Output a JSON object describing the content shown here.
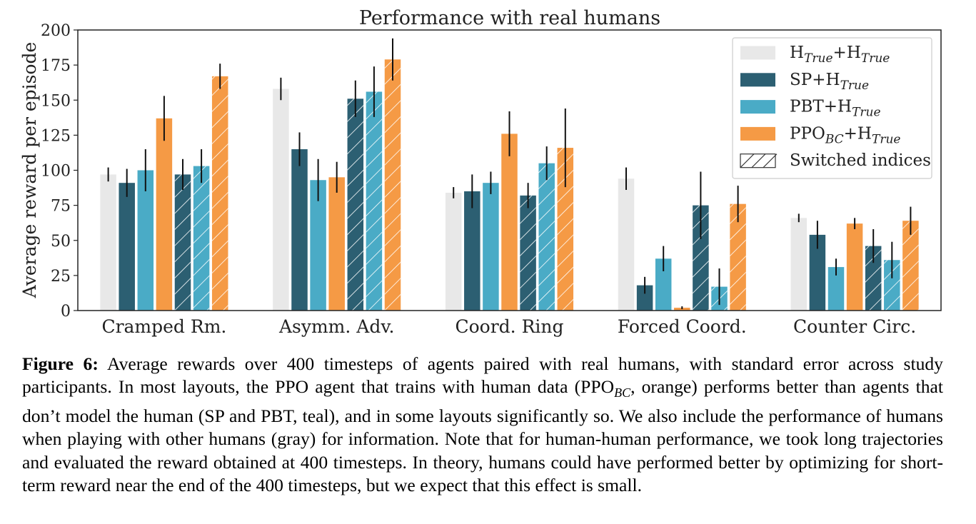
{
  "chart_data": {
    "type": "bar",
    "title": "Performance with real humans",
    "ylabel": "Average reward per episode",
    "xlabel": "",
    "ylim": [
      0,
      200
    ],
    "yticks": [
      0,
      25,
      50,
      75,
      100,
      125,
      150,
      175,
      200
    ],
    "categories": [
      "Cramped Rm.",
      "Asymm. Adv.",
      "Coord. Ring",
      "Forced Coord.",
      "Counter Circ."
    ],
    "legend_position": "top-right",
    "colors": {
      "H_True+H_True": "#e8e8e8",
      "SP+H_True": "#2c5f72",
      "PBT+H_True": "#4aabc6",
      "PPO_BC+H_True": "#f59a45"
    },
    "legend": [
      {
        "base": "H",
        "sub": "True",
        "mid": "+H",
        "sub2": "True",
        "key": "H_True+H_True",
        "hatched": false
      },
      {
        "base": "SP+H",
        "sub": "True",
        "key": "SP+H_True",
        "hatched": false
      },
      {
        "base": "PBT+H",
        "sub": "True",
        "key": "PBT+H_True",
        "hatched": false
      },
      {
        "base": "PPO",
        "sub": "BC",
        "mid": "+H",
        "sub2": "True",
        "key": "PPO_BC+H_True",
        "hatched": false
      },
      {
        "base": "Switched indices",
        "key": "switched",
        "hatched": true
      }
    ],
    "series": [
      {
        "key": "H_True+H_True",
        "values": [
          97,
          158,
          84,
          94,
          66
        ],
        "err": [
          5,
          8,
          4,
          8,
          3
        ]
      },
      {
        "key": "SP+H_True",
        "values": [
          91,
          115,
          85,
          18,
          54
        ],
        "err": [
          10,
          12,
          12,
          6,
          10
        ]
      },
      {
        "key": "PBT+H_True",
        "values": [
          100,
          93,
          91,
          37,
          31
        ],
        "err": [
          15,
          15,
          8,
          9,
          6
        ]
      },
      {
        "key": "PPO_BC+H_True",
        "values": [
          137,
          95,
          126,
          2,
          62
        ],
        "err": [
          16,
          11,
          16,
          1,
          4
        ]
      },
      {
        "key": "SP+H_True",
        "switched": true,
        "values": [
          97,
          151,
          82,
          75,
          46
        ],
        "err": [
          11,
          13,
          9,
          24,
          12
        ]
      },
      {
        "key": "PBT+H_True",
        "switched": true,
        "values": [
          103,
          156,
          105,
          17,
          36
        ],
        "err": [
          12,
          18,
          12,
          13,
          13
        ]
      },
      {
        "key": "PPO_BC+H_True",
        "switched": true,
        "values": [
          167,
          179,
          116,
          76,
          64
        ],
        "err": [
          9,
          15,
          28,
          13,
          10
        ]
      }
    ]
  },
  "caption": {
    "label": "Figure 6:",
    "text_before": " Average rewards over 400 timesteps of agents paired with real humans, with standard error across study participants. In most layouts, the PPO agent that trains with human data (PPO",
    "sub": "BC",
    "text_after": ", orange) performs better than agents that don’t model the human (SP and PBT, teal), and in some layouts significantly so. We also include the performance of humans when playing with other humans (gray) for information. Note that for human-human performance, we took long trajectories and evaluated the reward obtained at 400 timesteps. In theory, humans could have performed better by optimizing for short-term reward near the end of the 400 timesteps, but we expect that this effect is small."
  }
}
